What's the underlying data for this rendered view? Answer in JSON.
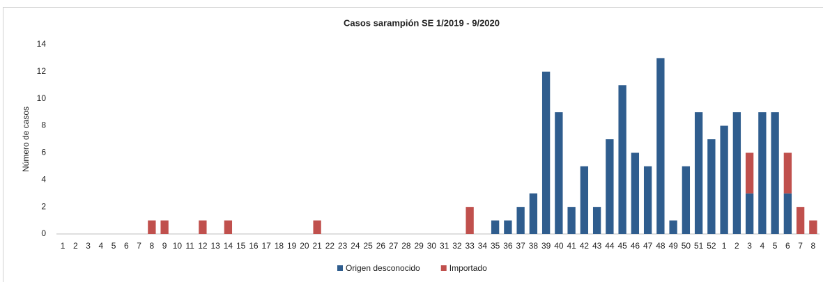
{
  "chart_data": {
    "type": "stacked_bar",
    "title": "Casos sarampión SE 1/2019 - 9/2020",
    "y_label": "Número de casos",
    "categories": [
      "1",
      "2",
      "3",
      "4",
      "5",
      "6",
      "7",
      "8",
      "9",
      "10",
      "11",
      "12",
      "13",
      "14",
      "15",
      "16",
      "17",
      "18",
      "19",
      "20",
      "21",
      "22",
      "23",
      "24",
      "25",
      "26",
      "27",
      "28",
      "29",
      "30",
      "31",
      "32",
      "33",
      "34",
      "35",
      "36",
      "37",
      "38",
      "39",
      "40",
      "41",
      "42",
      "43",
      "44",
      "45",
      "46",
      "47",
      "48",
      "49",
      "50",
      "51",
      "52",
      "1",
      "2",
      "3",
      "4",
      "5",
      "6",
      "7",
      "8"
    ],
    "series": [
      {
        "name": "Origen desconocido",
        "color": "#2f5d8e",
        "values": [
          0,
          0,
          0,
          0,
          0,
          0,
          0,
          0,
          0,
          0,
          0,
          0,
          0,
          0,
          0,
          0,
          0,
          0,
          0,
          0,
          0,
          0,
          0,
          0,
          0,
          0,
          0,
          0,
          0,
          0,
          0,
          0,
          0,
          0,
          1,
          1,
          2,
          3,
          12,
          9,
          2,
          5,
          2,
          7,
          11,
          6,
          5,
          13,
          1,
          5,
          9,
          7,
          8,
          9,
          3,
          9,
          9,
          3,
          0,
          0
        ]
      },
      {
        "name": "Importado",
        "color": "#c0504d",
        "values": [
          0,
          0,
          0,
          0,
          0,
          0,
          0,
          1,
          1,
          0,
          0,
          1,
          0,
          1,
          0,
          0,
          0,
          0,
          0,
          0,
          1,
          0,
          0,
          0,
          0,
          0,
          0,
          0,
          0,
          0,
          0,
          0,
          2,
          0,
          0,
          0,
          0,
          0,
          0,
          0,
          0,
          0,
          0,
          0,
          0,
          0,
          0,
          0,
          0,
          0,
          0,
          0,
          0,
          0,
          3,
          0,
          0,
          3,
          2,
          1
        ]
      }
    ],
    "ylim": [
      0,
      14
    ],
    "yticks": [
      0,
      2,
      4,
      6,
      8,
      10,
      12,
      14
    ],
    "grid": false,
    "legend": "bottom"
  }
}
